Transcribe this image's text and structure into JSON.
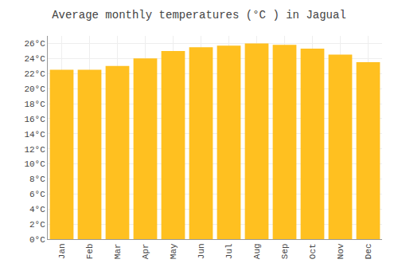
{
  "chart_data": {
    "type": "bar",
    "title": "Average monthly temperatures (°C ) in Jagual",
    "categories": [
      "Jan",
      "Feb",
      "Mar",
      "Apr",
      "May",
      "Jun",
      "Jul",
      "Aug",
      "Sep",
      "Oct",
      "Nov",
      "Dec"
    ],
    "values": [
      22.5,
      22.5,
      23.0,
      24.0,
      25.0,
      25.5,
      25.7,
      26.0,
      25.8,
      25.3,
      24.5,
      23.5
    ],
    "color": "#FFC020",
    "ylim": [
      0,
      27
    ],
    "yticks": [
      {
        "value": 0,
        "label": "0°C"
      },
      {
        "value": 2,
        "label": "2°C"
      },
      {
        "value": 4,
        "label": "4°C"
      },
      {
        "value": 6,
        "label": "6°C"
      },
      {
        "value": 8,
        "label": "8°C"
      },
      {
        "value": 10,
        "label": "10°C"
      },
      {
        "value": 12,
        "label": "12°C"
      },
      {
        "value": 14,
        "label": "14°C"
      },
      {
        "value": 16,
        "label": "16°C"
      },
      {
        "value": 18,
        "label": "18°C"
      },
      {
        "value": 20,
        "label": "20°C"
      },
      {
        "value": 22,
        "label": "22°C"
      },
      {
        "value": 24,
        "label": "24°C"
      },
      {
        "value": 26,
        "label": "26°C"
      }
    ],
    "grid": true
  }
}
